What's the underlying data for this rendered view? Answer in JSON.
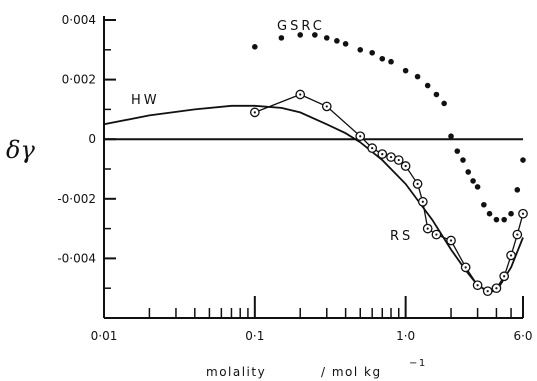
{
  "chart_data": {
    "type": "line",
    "x_scale": "log",
    "xlim": [
      0.01,
      6.0
    ],
    "ylim": [
      -0.006,
      0.004
    ],
    "xlabel": "molality",
    "xunit": "/ mol kg",
    "xunit_exp": "−1",
    "ylabel": "δγ",
    "x_ticks": [
      {
        "value": 0.01,
        "label": "0·01"
      },
      {
        "value": 0.1,
        "label": "0·1"
      },
      {
        "value": 1.0,
        "label": "1·0"
      },
      {
        "value": 6.0,
        "label": "6·0"
      }
    ],
    "y_ticks": [
      {
        "value": 0.004,
        "label": "0·004"
      },
      {
        "value": 0.002,
        "label": "0·002"
      },
      {
        "value": 0,
        "label": "0"
      },
      {
        "value": -0.002,
        "label": "-0·002"
      },
      {
        "value": -0.004,
        "label": "-0·004"
      }
    ],
    "series": [
      {
        "name": "HW",
        "style": "line",
        "color": "#111111",
        "x": [
          0.01,
          0.02,
          0.04,
          0.07,
          0.1,
          0.15,
          0.2,
          0.3,
          0.4,
          0.5,
          0.7,
          1.0,
          1.5,
          2.0,
          2.5,
          3.0,
          3.5,
          4.0,
          5.0,
          6.0
        ],
        "y": [
          0.0005,
          0.0008,
          0.001,
          0.00112,
          0.00112,
          0.00105,
          0.0009,
          0.0005,
          0.0002,
          -0.0001,
          -0.0007,
          -0.0015,
          -0.0027,
          -0.0037,
          -0.0044,
          -0.0049,
          -0.0051,
          -0.0051,
          -0.0043,
          -0.0033
        ]
      },
      {
        "name": "RS",
        "style": "line-markers",
        "color": "#111111",
        "x": [
          0.1,
          0.2,
          0.3,
          0.5,
          0.6,
          0.7,
          0.8,
          0.9,
          1.0,
          1.2,
          1.3,
          1.4,
          1.6,
          2.0,
          2.5,
          3.0,
          3.5,
          4.0,
          4.5,
          5.0,
          5.5,
          6.0
        ],
        "y": [
          0.0009,
          0.0015,
          0.0011,
          0.0001,
          -0.0003,
          -0.0005,
          -0.0006,
          -0.0007,
          -0.0009,
          -0.0015,
          -0.0021,
          -0.003,
          -0.0032,
          -0.0034,
          -0.0043,
          -0.0049,
          -0.0051,
          -0.005,
          -0.0046,
          -0.0039,
          -0.0032,
          -0.0025
        ]
      },
      {
        "name": "GSRC",
        "style": "dots",
        "color": "#111111",
        "x": [
          0.1,
          0.15,
          0.2,
          0.25,
          0.3,
          0.35,
          0.4,
          0.5,
          0.6,
          0.7,
          0.8,
          1.0,
          1.2,
          1.4,
          1.6,
          1.8,
          2.0,
          2.2,
          2.4,
          2.6,
          2.8,
          3.0,
          3.3,
          3.6,
          4.0,
          4.5,
          5.0,
          5.5,
          6.0
        ],
        "y": [
          0.0031,
          0.0034,
          0.0035,
          0.0035,
          0.0034,
          0.0033,
          0.0032,
          0.003,
          0.0029,
          0.0027,
          0.0026,
          0.0023,
          0.0021,
          0.0018,
          0.0015,
          0.0012,
          0.0001,
          -0.0004,
          -0.0007,
          -0.0011,
          -0.0014,
          -0.0016,
          -0.0022,
          -0.0025,
          -0.0027,
          -0.0027,
          -0.0025,
          -0.0017,
          -0.0007
        ]
      }
    ],
    "annotations": [
      {
        "text": "GSRC",
        "series": "GSRC"
      },
      {
        "text": "HW",
        "series": "HW"
      },
      {
        "text": "RS",
        "series": "RS"
      }
    ]
  }
}
